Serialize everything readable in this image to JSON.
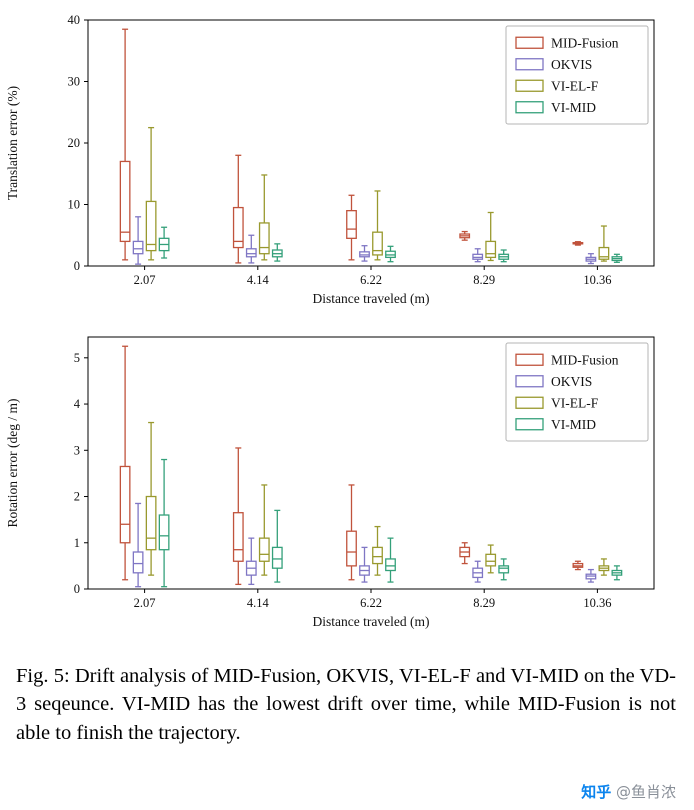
{
  "figure": {
    "caption": "Fig. 5: Drift analysis of MID-Fusion, OKVIS, VI-EL-F and VI-MID on the VD-3 seqeunce. VI-MID has the lowest drift over time, while MID-Fusion is not able to finish the trajectory."
  },
  "watermark": {
    "brand": "知乎",
    "handle": "@鱼肖浓",
    "brand_color": "#0b84ee",
    "handle_color": "#8a9099"
  },
  "colors": {
    "mid_fusion": "#c0533c",
    "okvis": "#7f76c4",
    "vi_el_f": "#99992e",
    "vi_mid": "#34a07a",
    "legend_border": "#b5b5b5",
    "axis": "#000000"
  },
  "chart_data": [
    {
      "type": "boxplot",
      "title": "",
      "xlabel": "Distance traveled (m)",
      "ylabel": "Translation error (%)",
      "ylim": [
        0,
        40
      ],
      "yticks": [
        0,
        10,
        20,
        30,
        40
      ],
      "categories": [
        "2.07",
        "4.14",
        "6.22",
        "8.29",
        "10.36"
      ],
      "grid": false,
      "legend_position": "upper right",
      "box_format": [
        "whisker_low",
        "q1",
        "median",
        "q3",
        "whisker_high"
      ],
      "series": [
        {
          "name": "MID-Fusion",
          "color": "#c0533c",
          "boxes": [
            [
              1.0,
              4.0,
              5.5,
              17.0,
              38.5
            ],
            [
              0.5,
              3.0,
              4.0,
              9.5,
              18.0
            ],
            [
              1.0,
              4.5,
              6.0,
              9.0,
              11.5
            ],
            [
              4.2,
              4.6,
              4.9,
              5.2,
              5.6
            ],
            [
              3.4,
              3.6,
              3.7,
              3.8,
              3.95
            ]
          ]
        },
        {
          "name": "OKVIS",
          "color": "#7f76c4",
          "boxes": [
            [
              0.3,
              2.0,
              2.8,
              4.0,
              8.0
            ],
            [
              0.5,
              1.5,
              2.0,
              2.8,
              5.0
            ],
            [
              0.8,
              1.5,
              1.8,
              2.3,
              3.3
            ],
            [
              0.7,
              1.1,
              1.4,
              1.9,
              2.8
            ],
            [
              0.4,
              0.8,
              1.1,
              1.4,
              2.0
            ]
          ]
        },
        {
          "name": "VI-EL-F",
          "color": "#99992e",
          "boxes": [
            [
              1.0,
              2.5,
              3.5,
              10.5,
              22.5
            ],
            [
              1.0,
              2.0,
              3.0,
              7.0,
              14.8
            ],
            [
              1.0,
              1.8,
              2.5,
              5.5,
              12.2
            ],
            [
              0.9,
              1.4,
              2.0,
              4.0,
              8.7
            ],
            [
              0.8,
              1.1,
              1.5,
              3.0,
              6.5
            ]
          ]
        },
        {
          "name": "VI-MID",
          "color": "#34a07a",
          "boxes": [
            [
              1.3,
              2.5,
              3.5,
              4.5,
              6.3
            ],
            [
              0.8,
              1.5,
              2.0,
              2.6,
              3.6
            ],
            [
              0.7,
              1.4,
              1.8,
              2.4,
              3.2
            ],
            [
              0.7,
              1.1,
              1.5,
              1.9,
              2.6
            ],
            [
              0.6,
              0.9,
              1.2,
              1.5,
              1.9
            ]
          ]
        }
      ]
    },
    {
      "type": "boxplot",
      "title": "",
      "xlabel": "Distance traveled (m)",
      "ylabel": "Rotation error (deg / m)",
      "ylim": [
        0,
        5.45
      ],
      "yticks": [
        0,
        1,
        2,
        3,
        4,
        5
      ],
      "categories": [
        "2.07",
        "4.14",
        "6.22",
        "8.29",
        "10.36"
      ],
      "grid": false,
      "legend_position": "upper right",
      "box_format": [
        "whisker_low",
        "q1",
        "median",
        "q3",
        "whisker_high"
      ],
      "series": [
        {
          "name": "MID-Fusion",
          "color": "#c0533c",
          "boxes": [
            [
              0.2,
              1.0,
              1.4,
              2.65,
              5.25
            ],
            [
              0.1,
              0.6,
              0.85,
              1.65,
              3.05
            ],
            [
              0.2,
              0.5,
              0.8,
              1.25,
              2.25
            ],
            [
              0.55,
              0.7,
              0.8,
              0.9,
              1.0
            ],
            [
              0.42,
              0.47,
              0.5,
              0.55,
              0.6
            ]
          ]
        },
        {
          "name": "OKVIS",
          "color": "#7f76c4",
          "boxes": [
            [
              0.05,
              0.35,
              0.55,
              0.8,
              1.85
            ],
            [
              0.1,
              0.3,
              0.45,
              0.6,
              1.1
            ],
            [
              0.15,
              0.3,
              0.4,
              0.5,
              0.9
            ],
            [
              0.15,
              0.25,
              0.35,
              0.45,
              0.6
            ],
            [
              0.15,
              0.22,
              0.28,
              0.32,
              0.42
            ]
          ]
        },
        {
          "name": "VI-EL-F",
          "color": "#99992e",
          "boxes": [
            [
              0.3,
              0.85,
              1.1,
              2.0,
              3.6
            ],
            [
              0.3,
              0.6,
              0.75,
              1.1,
              2.25
            ],
            [
              0.3,
              0.55,
              0.7,
              0.9,
              1.35
            ],
            [
              0.35,
              0.5,
              0.6,
              0.75,
              0.95
            ],
            [
              0.3,
              0.4,
              0.45,
              0.5,
              0.65
            ]
          ]
        },
        {
          "name": "VI-MID",
          "color": "#34a07a",
          "boxes": [
            [
              0.05,
              0.85,
              1.15,
              1.6,
              2.8
            ],
            [
              0.15,
              0.45,
              0.65,
              0.9,
              1.7
            ],
            [
              0.15,
              0.4,
              0.5,
              0.65,
              1.1
            ],
            [
              0.2,
              0.35,
              0.45,
              0.5,
              0.65
            ],
            [
              0.2,
              0.3,
              0.35,
              0.4,
              0.5
            ]
          ]
        }
      ]
    }
  ]
}
